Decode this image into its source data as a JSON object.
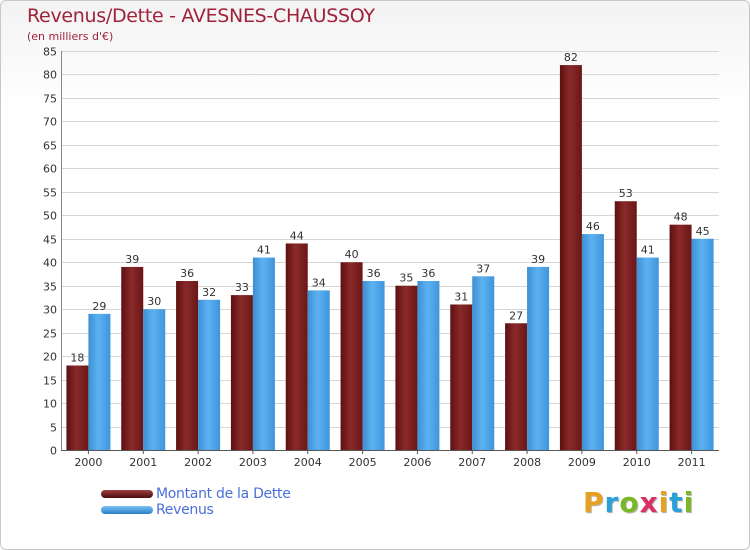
{
  "chart_data": {
    "type": "bar",
    "title": "Revenus/Dette - AVESNES-CHAUSSOY",
    "subtitle": "(en milliers d'€)",
    "xlabel": "",
    "ylabel": "",
    "categories": [
      "2000",
      "2001",
      "2002",
      "2003",
      "2004",
      "2005",
      "2006",
      "2007",
      "2008",
      "2009",
      "2010",
      "2011"
    ],
    "series": [
      {
        "name": "Montant de la Dette",
        "color": "#7a1c1c",
        "values": [
          18,
          39,
          36,
          33,
          44,
          40,
          35,
          31,
          27,
          82,
          53,
          48
        ]
      },
      {
        "name": "Revenus",
        "color": "#4aa3e8",
        "values": [
          29,
          30,
          32,
          41,
          34,
          36,
          36,
          37,
          39,
          46,
          41,
          45
        ]
      }
    ],
    "ylim": [
      0,
      85
    ],
    "ytick_step": 5,
    "grid": true,
    "legend_position": "bottom-left"
  },
  "brand": {
    "text": "Proxiti",
    "letters": [
      {
        "char": "P",
        "color": "#e8a020"
      },
      {
        "char": "r",
        "color": "#2aa0d8"
      },
      {
        "char": "o",
        "color": "#7ab828"
      },
      {
        "char": "x",
        "color": "#d83060"
      },
      {
        "char": "i",
        "color": "#e8a020"
      },
      {
        "char": "t",
        "color": "#2aa0d8"
      },
      {
        "char": "i",
        "color": "#7ab828"
      }
    ]
  }
}
